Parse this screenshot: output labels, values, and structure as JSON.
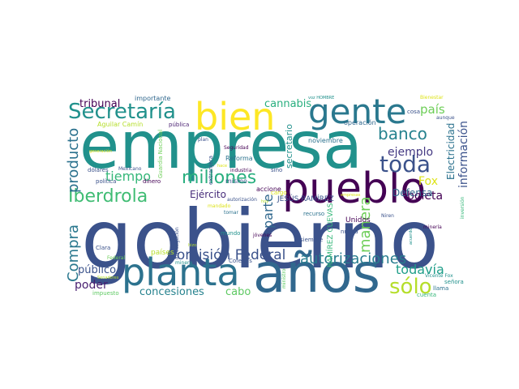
{
  "words": [
    {
      "text": "gobierno",
      "color": "#3b528b"
    },
    {
      "text": "empresa",
      "color": "#21918c"
    },
    {
      "text": "años",
      "color": "#31688e"
    },
    {
      "text": "pueblo",
      "color": "#440154"
    },
    {
      "text": "planta",
      "color": "#2c728e"
    },
    {
      "text": "gente",
      "color": "#2a788e"
    },
    {
      "text": "bien",
      "color": "#fde725"
    },
    {
      "text": "Secretaría",
      "color": "#21918c"
    },
    {
      "text": "Iberdrola",
      "color": "#3fbc73"
    },
    {
      "text": "millones",
      "color": "#29af7f"
    },
    {
      "text": "autorizaciones",
      "color": "#287c8e"
    },
    {
      "text": "Comisión Federal",
      "color": "#3b528b"
    },
    {
      "text": "toda",
      "color": "#3b528b"
    },
    {
      "text": "banco",
      "color": "#26828e"
    },
    {
      "text": "sólo",
      "color": "#b5de2b"
    },
    {
      "text": "todavía",
      "color": "#1f9e89"
    },
    {
      "text": "Compra",
      "color": "#2a788e"
    },
    {
      "text": "producto",
      "color": "#2c728e"
    },
    {
      "text": "manera",
      "color": "#6ece58"
    },
    {
      "text": "parte",
      "color": "#31688e"
    },
    {
      "text": "tiempo",
      "color": "#35b779"
    },
    {
      "text": "ejemplo",
      "color": "#443983"
    },
    {
      "text": "boleta",
      "color": "#440154"
    },
    {
      "text": "información",
      "color": "#3b528b"
    },
    {
      "text": "Electricidad",
      "color": "#2c728e"
    },
    {
      "text": "Defensa",
      "color": "#31688e"
    },
    {
      "text": "país",
      "color": "#6ece58"
    },
    {
      "text": "Fox",
      "color": "#dde318"
    },
    {
      "text": "cannabis",
      "color": "#29af7f"
    },
    {
      "text": "tribunal",
      "color": "#440154"
    },
    {
      "text": "concesiones",
      "color": "#26828e"
    },
    {
      "text": "Ejército",
      "color": "#472d7b"
    },
    {
      "text": "poder",
      "color": "#481f70"
    },
    {
      "text": "público",
      "color": "#3b528b"
    },
    {
      "text": "cabo",
      "color": "#5ec962"
    },
    {
      "text": "secretario",
      "color": "#21918c"
    },
    {
      "text": "JESÚS RAMÍREZ",
      "color": "#3b528b"
    },
    {
      "text": "RAMÍREZ CUEVAS",
      "color": "#35b779"
    },
    {
      "text": "Unidos",
      "color": "#440154"
    },
    {
      "text": "países",
      "color": "#b5de2b"
    },
    {
      "text": "importante",
      "color": "#31688e"
    },
    {
      "text": "Aguilar Camín",
      "color": "#b5de2b"
    },
    {
      "text": "pública",
      "color": "#481f70"
    },
    {
      "text": "Guardia Nacional",
      "color": "#6ece58"
    },
    {
      "text": "extranjera",
      "color": "#3b528b"
    },
    {
      "text": "Reforma",
      "color": "#2c728e"
    },
    {
      "text": "mismo",
      "color": "#3b528b"
    },
    {
      "text": "industria",
      "color": "#440154"
    },
    {
      "text": "accione",
      "color": "#440154"
    },
    {
      "text": "cargo",
      "color": "#dde318"
    },
    {
      "text": "noviembre",
      "color": "#2c728e"
    },
    {
      "text": "operación",
      "color": "#31688e"
    },
    {
      "text": "cosa",
      "color": "#3b528b"
    },
    {
      "text": "Bienestar",
      "color": "#dde318"
    },
    {
      "text": "aunque",
      "color": "#3b528b"
    },
    {
      "text": "voz HOMBRE",
      "color": "#21918c"
    },
    {
      "text": "Seguridad",
      "color": "#440154"
    },
    {
      "text": "plan",
      "color": "#3b528b"
    },
    {
      "text": "sino",
      "color": "#3b528b"
    },
    {
      "text": "recurso",
      "color": "#2c728e"
    },
    {
      "text": "siempre",
      "color": "#3b528b"
    },
    {
      "text": "nueva",
      "color": "#3b528b"
    },
    {
      "text": "jóvenes",
      "color": "#440154"
    },
    {
      "text": "mundo",
      "color": "#21918c"
    },
    {
      "text": "tomar",
      "color": "#2c728e"
    },
    {
      "text": "investigación",
      "color": "#3b528b"
    },
    {
      "text": "Clara",
      "color": "#3b528b"
    },
    {
      "text": "Federal",
      "color": "#6ece58"
    },
    {
      "text": "minera",
      "color": "#21918c"
    },
    {
      "text": "Cofepris",
      "color": "#3b528b"
    },
    {
      "text": "ministro",
      "color": "#5ec962"
    },
    {
      "text": "Niren",
      "color": "#3b528b"
    },
    {
      "text": "minería",
      "color": "#440154"
    },
    {
      "text": "inversión",
      "color": "#35b779"
    },
    {
      "text": "Vicente Fox",
      "color": "#21918c"
    },
    {
      "text": "señora",
      "color": "#21918c"
    },
    {
      "text": "llama",
      "color": "#2c728e"
    },
    {
      "text": "cuenta",
      "color": "#35b779"
    },
    {
      "text": "dólares",
      "color": "#3b528b"
    },
    {
      "text": "Mexicano",
      "color": "#3b528b"
    },
    {
      "text": "política",
      "color": "#3b528b"
    },
    {
      "text": "dinero",
      "color": "#440154"
    },
    {
      "text": "impuesto",
      "color": "#5ec962"
    },
    {
      "text": "Senadores",
      "color": "#b5de2b"
    },
    {
      "text": "autorización",
      "color": "#3b528b"
    },
    {
      "text": "generación",
      "color": "#dde318"
    },
    {
      "text": "empresas",
      "color": "#dde318"
    },
    {
      "text": "hace",
      "color": "#dde318"
    },
    {
      "text": "hizo",
      "color": "#b5de2b"
    },
    {
      "text": "hoy",
      "color": "#b5de2b"
    },
    {
      "text": "acuerdo",
      "color": "#21918c"
    },
    {
      "text": "mandado",
      "color": "#dde318"
    }
  ]
}
